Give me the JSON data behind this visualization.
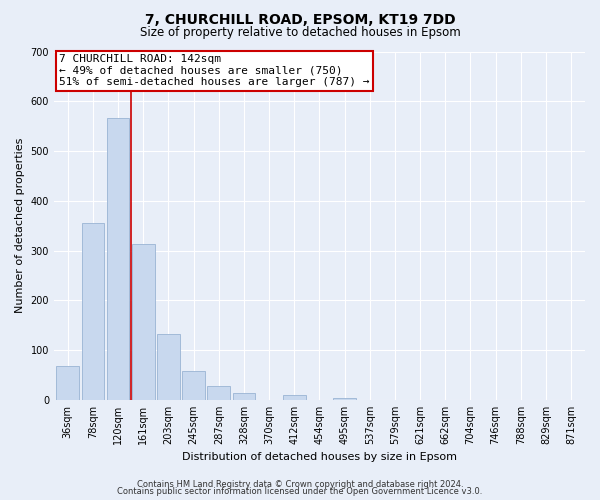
{
  "title": "7, CHURCHILL ROAD, EPSOM, KT19 7DD",
  "subtitle": "Size of property relative to detached houses in Epsom",
  "xlabel": "Distribution of detached houses by size in Epsom",
  "ylabel": "Number of detached properties",
  "bar_values": [
    68,
    355,
    567,
    314,
    133,
    58,
    27,
    13,
    0,
    10,
    0,
    3,
    0,
    0,
    0,
    0,
    0,
    0,
    0,
    0,
    0
  ],
  "bar_labels": [
    "36sqm",
    "78sqm",
    "120sqm",
    "161sqm",
    "203sqm",
    "245sqm",
    "287sqm",
    "328sqm",
    "370sqm",
    "412sqm",
    "454sqm",
    "495sqm",
    "537sqm",
    "579sqm",
    "621sqm",
    "662sqm",
    "704sqm",
    "746sqm",
    "788sqm",
    "829sqm",
    "871sqm"
  ],
  "bar_color": "#c8d8ee",
  "bar_edge_color": "#9ab4d4",
  "vline_x": 2.5,
  "vline_color": "#cc0000",
  "ylim": [
    0,
    700
  ],
  "yticks": [
    0,
    100,
    200,
    300,
    400,
    500,
    600,
    700
  ],
  "annotation_text": "7 CHURCHILL ROAD: 142sqm\n← 49% of detached houses are smaller (750)\n51% of semi-detached houses are larger (787) →",
  "annotation_box_color": "#ffffff",
  "annotation_box_edge": "#cc0000",
  "footer_line1": "Contains HM Land Registry data © Crown copyright and database right 2024.",
  "footer_line2": "Contains public sector information licensed under the Open Government Licence v3.0.",
  "background_color": "#e8eef8",
  "grid_color": "#ffffff",
  "title_fontsize": 10,
  "subtitle_fontsize": 8.5,
  "axis_label_fontsize": 8,
  "tick_fontsize": 7,
  "annotation_fontsize": 8,
  "footer_fontsize": 6
}
